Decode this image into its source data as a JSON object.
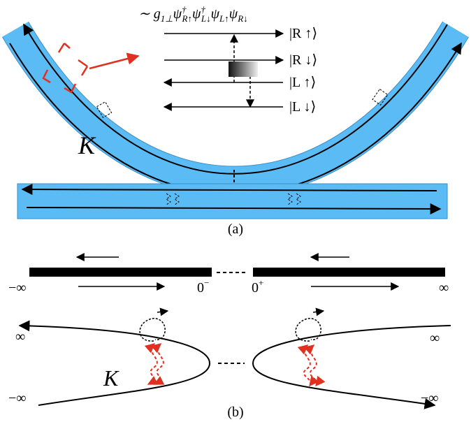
{
  "formula": {
    "prefix": "∼ g",
    "prefix_sub": "1⊥",
    "terms": [
      {
        "base": "ψ",
        "sup": "†",
        "sub": "R↑"
      },
      {
        "base": "ψ",
        "sup": "†",
        "sub": "L↓"
      },
      {
        "base": "ψ",
        "sub": "L↑"
      },
      {
        "base": "ψ",
        "sub": "R↓"
      }
    ]
  },
  "states": [
    "|R ↑⟩",
    "|R ↓⟩",
    "|L ↑⟩",
    "|L ↓⟩"
  ],
  "panel_a": {
    "label_k": "K",
    "caption": "(a)"
  },
  "panel_b": {
    "left_inf": "−∞",
    "zero_minus": {
      "base": "0",
      "sup": "−"
    },
    "zero_plus": {
      "base": "0",
      "sup": "+"
    },
    "right_inf": "∞",
    "curve_labels": [
      "∞",
      "−∞",
      "∞",
      "−∞"
    ],
    "label_k": "K",
    "caption": "(b)"
  }
}
